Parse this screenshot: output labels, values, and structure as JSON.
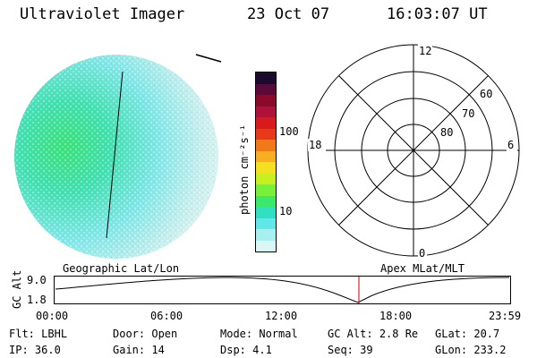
{
  "header": {
    "instrument": "Ultraviolet Imager",
    "date": "23 Oct 07",
    "time": "16:03:07 UT"
  },
  "colorbar": {
    "units_label": "photon cm⁻²s⁻¹",
    "tick_labels": [
      "100",
      "10"
    ],
    "colors": [
      "#1a0a2e",
      "#5a0a3a",
      "#8a0a2a",
      "#b0103a",
      "#d81a1a",
      "#e83a1a",
      "#f07a1a",
      "#f5b020",
      "#f5e020",
      "#c8f020",
      "#7aef3a",
      "#3ae86a",
      "#30e0c0",
      "#60e8e8",
      "#a8f0f0",
      "#dcf5f5"
    ]
  },
  "polar_plot": {
    "mlt_labels": [
      "12",
      "18",
      "6",
      "0"
    ],
    "lat_labels": [
      "60",
      "70",
      "80"
    ]
  },
  "orbit_panel": {
    "y_axis_title": "GC Alt",
    "y_ticks": [
      "9.0",
      "1.8"
    ],
    "left_title": "Geographic Lat/Lon",
    "right_title": "Apex MLat/MLT",
    "x_ticks": [
      "00:00",
      "06:00",
      "12:00",
      "18:00",
      "23:59"
    ],
    "marker_color": "#cc0000"
  },
  "info_rows": [
    [
      {
        "label": "Flt:",
        "value": "LBHL"
      },
      {
        "label": "Door:",
        "value": "Open"
      },
      {
        "label": "Mode:",
        "value": "Normal"
      },
      {
        "label": "GC Alt:",
        "value": "2.8 Re"
      },
      {
        "label": "GLat:",
        "value": "20.7"
      }
    ],
    [
      {
        "label": "IP:",
        "value": "36.0"
      },
      {
        "label": "Gain:",
        "value": "14"
      },
      {
        "label": "Dsp:",
        "value": "4.1"
      },
      {
        "label": "Seq:",
        "value": "39"
      },
      {
        "label": "GLon:",
        "value": "233.2"
      }
    ]
  ]
}
